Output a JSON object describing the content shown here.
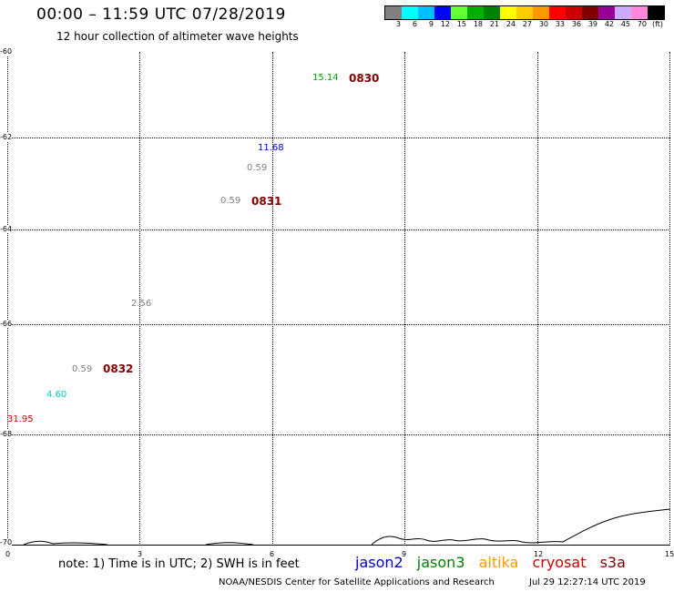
{
  "header": {
    "title": "00:00 – 11:59 UTC 07/28/2019",
    "subtitle": "12 hour collection of altimeter wave heights"
  },
  "legend": {
    "colors": [
      "#808080",
      "#00ffff",
      "#00bfff",
      "#0000ff",
      "#66ff33",
      "#00b000",
      "#008000",
      "#ffff00",
      "#ffcc00",
      "#ff9900",
      "#ff0000",
      "#cc0000",
      "#800000",
      "#990099",
      "#ccaaff",
      "#ff88dd",
      "#000000"
    ],
    "labels": [
      "3",
      "6",
      "9",
      "12",
      "15",
      "18",
      "21",
      "24",
      "27",
      "30",
      "33",
      "36",
      "39",
      "42",
      "45",
      "70"
    ],
    "unit": "(ft)"
  },
  "axes": {
    "y_labels": [
      "-60",
      "-62",
      "-64",
      "-66",
      "-68",
      "-70"
    ],
    "x_labels": [
      "0",
      "3",
      "6",
      "9",
      "12",
      "15"
    ]
  },
  "observations": [
    {
      "value": "15.14",
      "color": "#00a000"
    },
    {
      "value": "11.68",
      "color": "#0000cc"
    },
    {
      "value": "0.59",
      "color": "#808080"
    },
    {
      "value": "0.59",
      "color": "#808080"
    },
    {
      "value": "2.56",
      "color": "#808080"
    },
    {
      "value": "0.59",
      "color": "#808080"
    },
    {
      "value": "4.60",
      "color": "#00cccc"
    },
    {
      "value": "31.95",
      "color": "#cc0000"
    }
  ],
  "passes": [
    "0830",
    "0831",
    "0832"
  ],
  "note": "note: 1) Time is in UTC; 2) SWH is in feet",
  "satellites": [
    {
      "name": "jason2",
      "color": "#0000cc"
    },
    {
      "name": "jason3",
      "color": "#008000"
    },
    {
      "name": "altika",
      "color": "#ff9900"
    },
    {
      "name": "cryosat",
      "color": "#cc0000"
    },
    {
      "name": "s3a",
      "color": "#800000"
    }
  ],
  "footer": {
    "credit": "NOAA/NESDIS Center for Satellite Applications and Research",
    "timestamp": "Jul 29 12:27:14 UTC 2019"
  }
}
